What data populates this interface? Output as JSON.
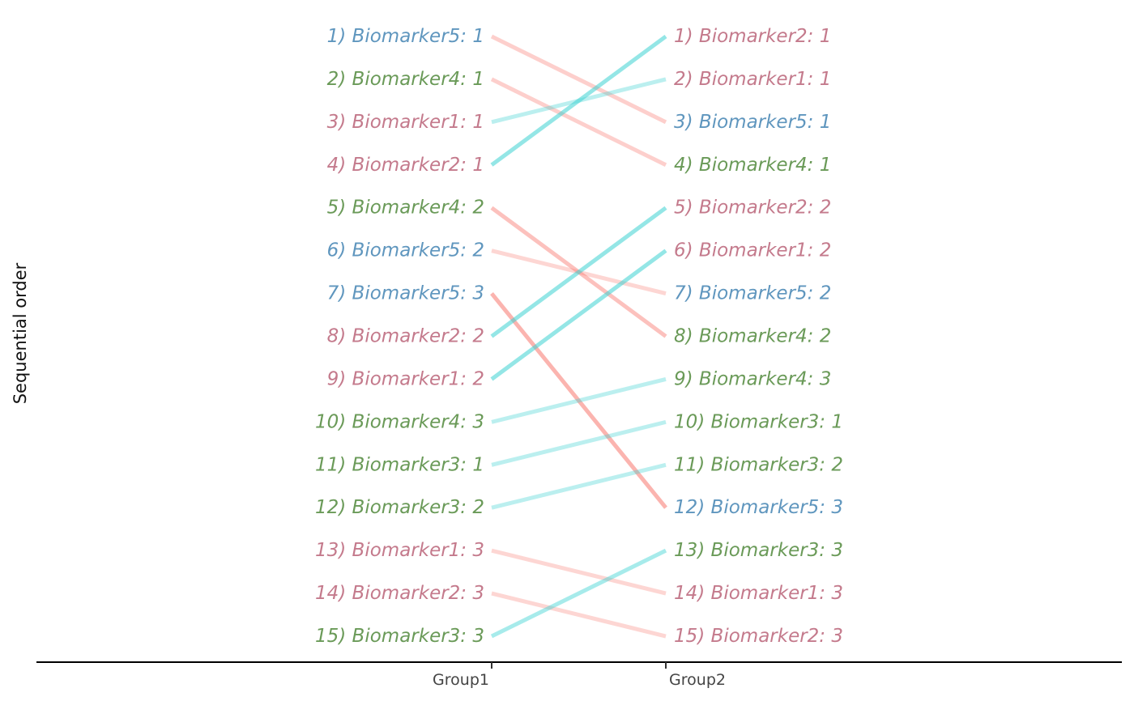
{
  "chart_data": {
    "type": "slope",
    "xlabel": "",
    "ylabel": "Sequential order",
    "x_categories": [
      "Group1",
      "Group2"
    ],
    "grid": false,
    "legend": "none",
    "label_colors": {
      "Biomarker1": "#c47a8c",
      "Biomarker2": "#c47a8c",
      "Biomarker3": "#6a9a58",
      "Biomarker4": "#6a9a58",
      "Biomarker5": "#5f96be"
    },
    "line_colors": {
      "up": "#3cd2d2",
      "down": "#f8766d"
    },
    "group1": [
      "1) Biomarker5: 1",
      "2) Biomarker4: 1",
      "3) Biomarker1: 1",
      "4) Biomarker2: 1",
      "5) Biomarker4: 2",
      "6) Biomarker5: 2",
      "7) Biomarker5: 3",
      "8) Biomarker2: 2",
      "9) Biomarker1: 2",
      "10) Biomarker4: 3",
      "11) Biomarker3: 1",
      "12) Biomarker3: 2",
      "13) Biomarker1: 3",
      "14) Biomarker2: 3",
      "15) Biomarker3: 3"
    ],
    "group2": [
      "1) Biomarker2: 1",
      "2) Biomarker1: 1",
      "3) Biomarker5: 1",
      "4) Biomarker4: 1",
      "5) Biomarker2: 2",
      "6) Biomarker1: 2",
      "7) Biomarker5: 2",
      "8) Biomarker4: 2",
      "9) Biomarker4: 3",
      "10) Biomarker3: 1",
      "11) Biomarker3: 2",
      "12) Biomarker5: 3",
      "13) Biomarker3: 3",
      "14) Biomarker1: 3",
      "15) Biomarker2: 3"
    ],
    "links": [
      {
        "item": "Biomarker5: 1",
        "from": 1,
        "to": 3,
        "direction": "down",
        "alpha": 0.35
      },
      {
        "item": "Biomarker4: 1",
        "from": 2,
        "to": 4,
        "direction": "down",
        "alpha": 0.35
      },
      {
        "item": "Biomarker1: 1",
        "from": 3,
        "to": 2,
        "direction": "up",
        "alpha": 0.35
      },
      {
        "item": "Biomarker2: 1",
        "from": 4,
        "to": 1,
        "direction": "up",
        "alpha": 0.55
      },
      {
        "item": "Biomarker4: 2",
        "from": 5,
        "to": 8,
        "direction": "down",
        "alpha": 0.45
      },
      {
        "item": "Biomarker5: 2",
        "from": 6,
        "to": 7,
        "direction": "down",
        "alpha": 0.3
      },
      {
        "item": "Biomarker5: 3",
        "from": 7,
        "to": 12,
        "direction": "down",
        "alpha": 0.55
      },
      {
        "item": "Biomarker2: 2",
        "from": 8,
        "to": 5,
        "direction": "up",
        "alpha": 0.55
      },
      {
        "item": "Biomarker1: 2",
        "from": 9,
        "to": 6,
        "direction": "up",
        "alpha": 0.55
      },
      {
        "item": "Biomarker4: 3",
        "from": 10,
        "to": 9,
        "direction": "up",
        "alpha": 0.35
      },
      {
        "item": "Biomarker3: 1",
        "from": 11,
        "to": 10,
        "direction": "up",
        "alpha": 0.35
      },
      {
        "item": "Biomarker3: 2",
        "from": 12,
        "to": 11,
        "direction": "up",
        "alpha": 0.35
      },
      {
        "item": "Biomarker1: 3",
        "from": 13,
        "to": 14,
        "direction": "down",
        "alpha": 0.3
      },
      {
        "item": "Biomarker2: 3",
        "from": 14,
        "to": 15,
        "direction": "down",
        "alpha": 0.3
      },
      {
        "item": "Biomarker3: 3",
        "from": 15,
        "to": 13,
        "direction": "up",
        "alpha": 0.45
      }
    ]
  }
}
